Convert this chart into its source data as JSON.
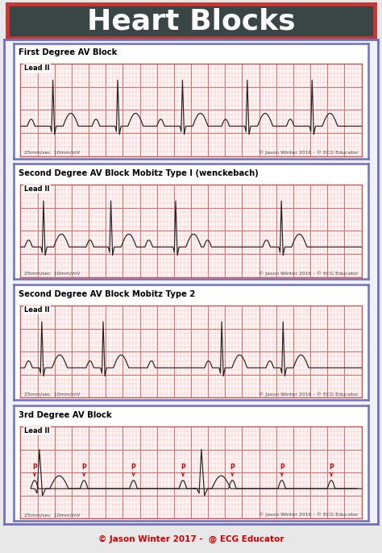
{
  "title": "Heart Blocks",
  "title_bg": "#3a4545",
  "title_color": "#ffffff",
  "title_border_outer": "#cc3333",
  "title_border_inner": "#cc3333",
  "background": "#e8e8e8",
  "outer_bg": "#f0f0f8",
  "panel_bg": "#fff5f5",
  "grid_major_color": "#e07070",
  "grid_minor_color": "#f0c0c0",
  "panel_border_outer": "#7070bb",
  "panel_border_inner": "#cc5555",
  "ecg_color": "#222222",
  "p_label_color": "#cc0000",
  "panels": [
    {
      "title": "First Degree AV Block",
      "copyright": "© Jason Winter 2016 - © ECG Educator"
    },
    {
      "title": "Second Degree AV Block Mobitz Type I (wenckebach)",
      "copyright": "© Jason Winter 2016 - © ECG Educator"
    },
    {
      "title": "Second Degree AV Block Mobitz Type 2",
      "copyright": "© Jason Winter 2016 - © ECG Educator"
    },
    {
      "title": "3rd Degree AV Block",
      "copyright": "© Jason Winter 2016 - © ECG Educator"
    }
  ],
  "bottom_copyright": "© Jason Winter 2017 -  @ ECG Educator",
  "scale_text": "25mm/sec  10mm/mV",
  "lead_label": "Lead II"
}
